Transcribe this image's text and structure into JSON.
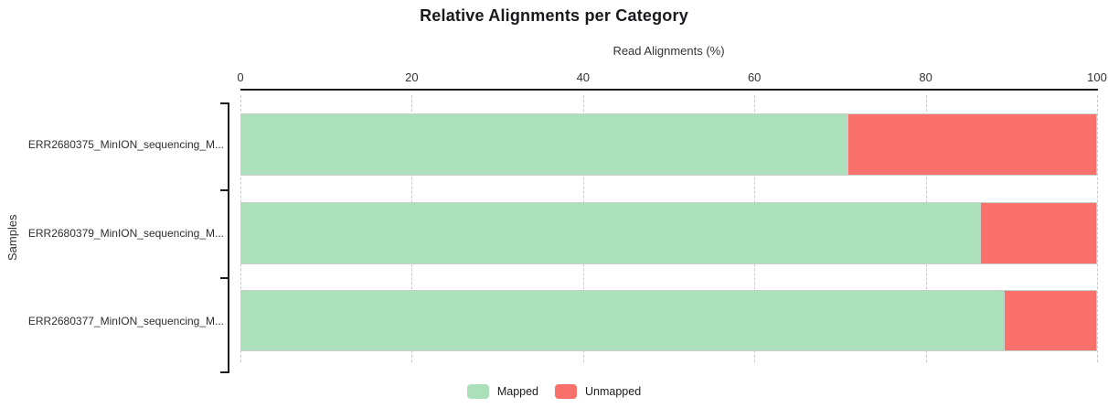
{
  "chart_data": {
    "type": "bar",
    "orientation": "horizontal",
    "stacked": true,
    "title": "Relative Alignments per Category",
    "xlabel": "Read Alignments (%)",
    "ylabel": "Samples",
    "xlim": [
      0,
      100
    ],
    "xticks": [
      0,
      20,
      40,
      60,
      80,
      100
    ],
    "grid": "vertical-dashed",
    "legend_position": "bottom-center",
    "categories": [
      "ERR2680375_MinION_sequencing_M...",
      "ERR2680379_MinION_sequencing_M...",
      "ERR2680377_MinION_sequencing_M..."
    ],
    "series": [
      {
        "name": "Mapped",
        "color": "#abe0ba",
        "values": [
          70.9,
          86.3,
          89.1
        ]
      },
      {
        "name": "Unmapped",
        "color": "#fa706b",
        "values": [
          29.1,
          13.7,
          10.9
        ]
      }
    ]
  },
  "colors": {
    "bar_border": "#c9cfc9",
    "gridline": "#c9c9c9",
    "axis_line": "#1c1c1c",
    "text": "#333333"
  }
}
